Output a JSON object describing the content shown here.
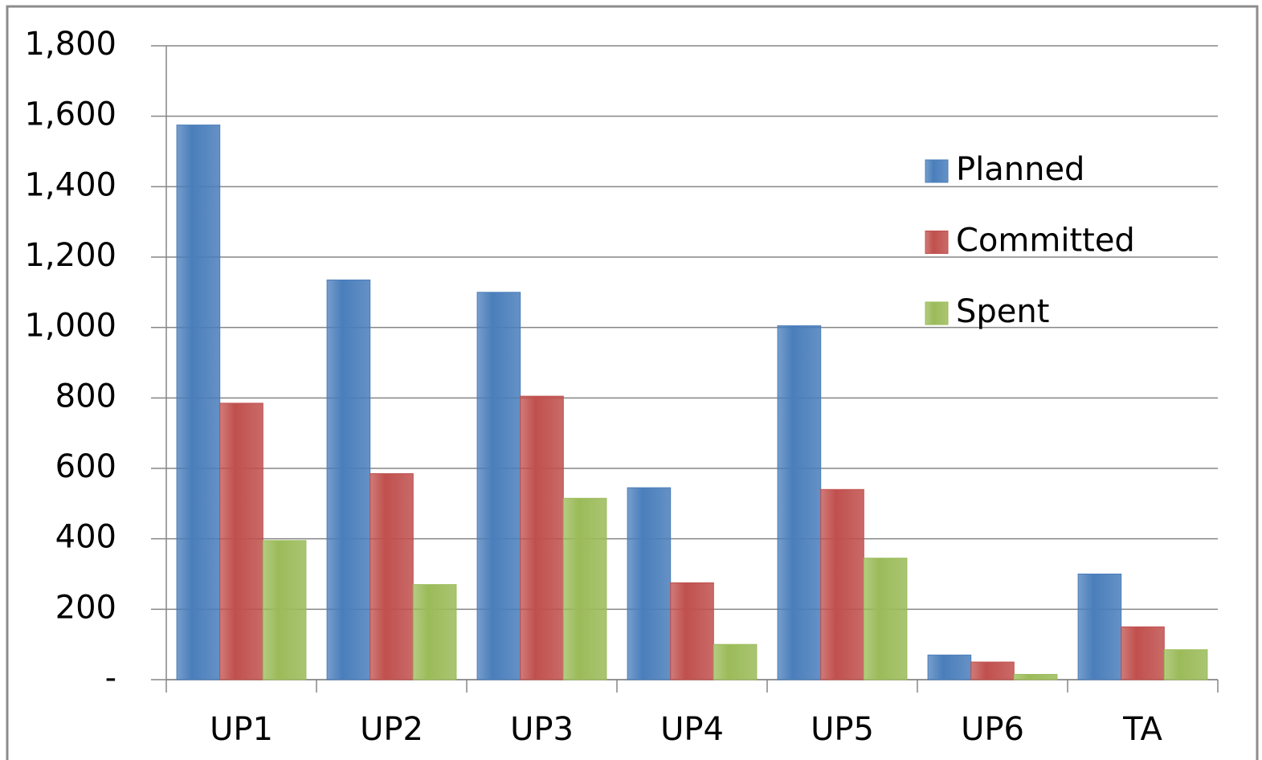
{
  "chart_data": {
    "type": "bar",
    "categories": [
      "UP1",
      "UP2",
      "UP3",
      "UP4",
      "UP5",
      "UP6",
      "TA"
    ],
    "series": [
      {
        "name": "Planned",
        "color": "#4a7ebb",
        "values": [
          1575,
          1135,
          1100,
          545,
          1005,
          70,
          300
        ]
      },
      {
        "name": "Committed",
        "color": "#c0504d",
        "values": [
          785,
          585,
          805,
          275,
          540,
          50,
          150
        ]
      },
      {
        "name": "Spent",
        "color": "#9bbb59",
        "values": [
          395,
          270,
          515,
          100,
          345,
          15,
          85
        ]
      }
    ],
    "ylim": [
      0,
      1800
    ],
    "yticks": [
      {
        "value": 0,
        "label": "-"
      },
      200,
      400,
      600,
      800,
      {
        "value": 1000,
        "label": "1,000"
      },
      {
        "value": 1200,
        "label": "1,200"
      },
      {
        "value": 1400,
        "label": "1,400"
      },
      {
        "value": 1600,
        "label": "1,600"
      },
      {
        "value": 1800,
        "label": "1,800"
      }
    ],
    "grid": true,
    "legend": "upper right"
  }
}
